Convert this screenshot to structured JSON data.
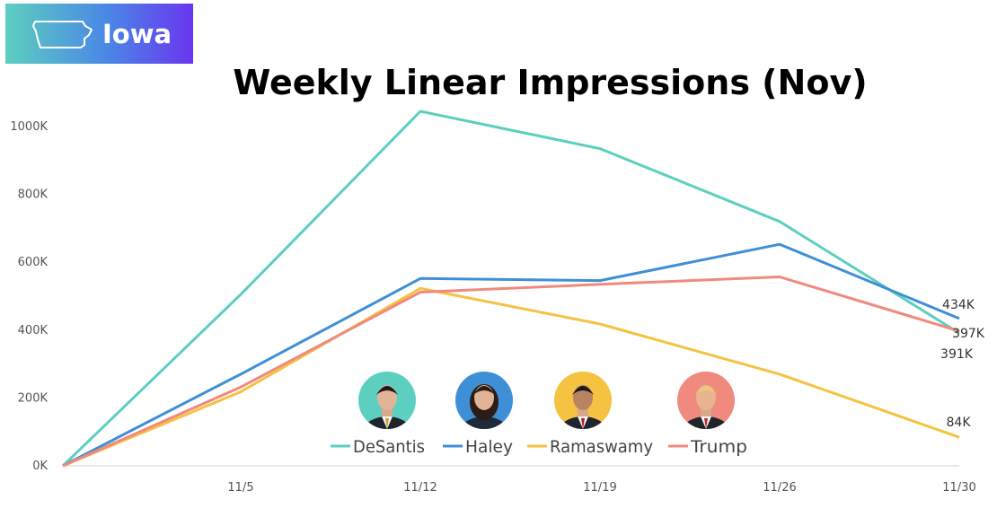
{
  "badge": {
    "label": "Iowa",
    "icon": "iowa-state-outline-icon"
  },
  "chart_data": {
    "type": "line",
    "title": "Weekly Linear Impressions (Nov)",
    "xlabel": "",
    "ylabel": "",
    "x": [
      "",
      "11/5",
      "11/12",
      "11/19",
      "11/26",
      "11/30"
    ],
    "y_ticks": [
      "0K",
      "200K",
      "400K",
      "600K",
      "800K",
      "1000K"
    ],
    "ylim": [
      0,
      1000
    ],
    "grid": false,
    "legend_position": "bottom-center",
    "series": [
      {
        "name": "DeSantis",
        "color": "#5ccfc0",
        "values": [
          0,
          505,
          1045,
          935,
          720,
          391
        ],
        "end_label": "391K",
        "avatar_icon": "desantis-photo-icon"
      },
      {
        "name": "Haley",
        "color": "#3f8fd6",
        "values": [
          0,
          270,
          552,
          546,
          653,
          434
        ],
        "end_label": "434K",
        "avatar_icon": "haley-photo-icon"
      },
      {
        "name": "Ramaswamy",
        "color": "#f5c242",
        "values": [
          0,
          218,
          523,
          418,
          270,
          84
        ],
        "end_label": "84K",
        "avatar_icon": "ramaswamy-photo-icon"
      },
      {
        "name": "Trump",
        "color": "#f08a7e",
        "values": [
          0,
          232,
          512,
          535,
          557,
          397
        ],
        "end_label": "397K",
        "avatar_icon": "trump-photo-icon"
      }
    ]
  }
}
